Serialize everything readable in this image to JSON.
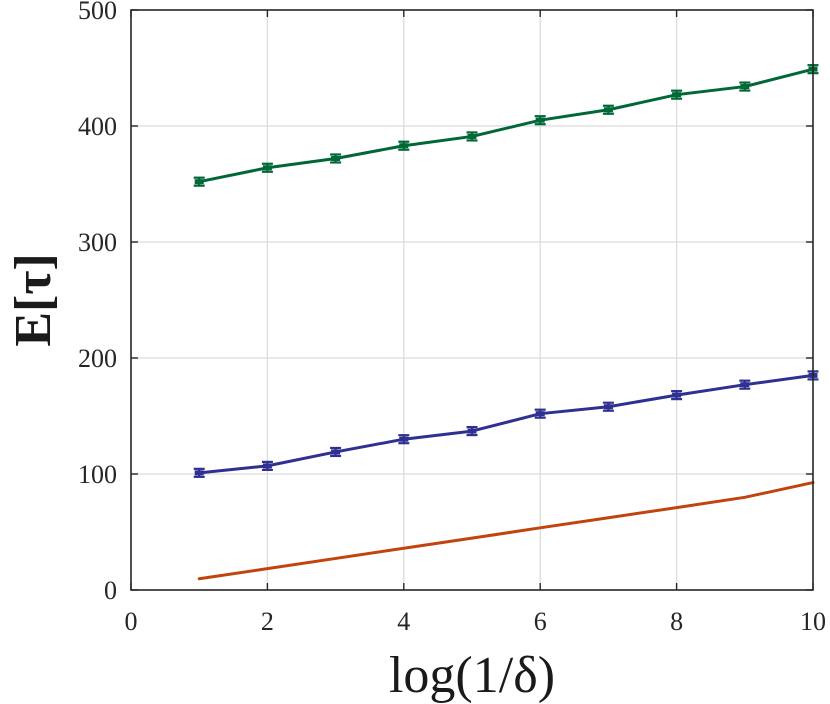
{
  "chart_data": {
    "type": "line",
    "title": "",
    "xlabel": "log(1/δ)",
    "ylabel": "E[τ]",
    "xlim": [
      0,
      10
    ],
    "ylim": [
      0,
      500
    ],
    "xticks": [
      0,
      2,
      4,
      6,
      8,
      10
    ],
    "yticks": [
      0,
      100,
      200,
      300,
      400,
      500
    ],
    "xtick_labels": [
      "0",
      "2",
      "4",
      "6",
      "8",
      "10"
    ],
    "ytick_labels": [
      "0",
      "100",
      "200",
      "300",
      "400",
      "500"
    ],
    "grid": true,
    "x": [
      1,
      2,
      3,
      4,
      5,
      6,
      7,
      8,
      9,
      10
    ],
    "series": [
      {
        "name": "green",
        "color": "#006837",
        "error_bars": true,
        "values": [
          352,
          364,
          372,
          383,
          391,
          405,
          414,
          427,
          434,
          449
        ]
      },
      {
        "name": "blue",
        "color": "#2e3192",
        "error_bars": true,
        "values": [
          101,
          107,
          119,
          130,
          137,
          152,
          158,
          168,
          177,
          185
        ]
      },
      {
        "name": "orange",
        "color": "#c1440e",
        "error_bars": false,
        "values": [
          9.7,
          18.4,
          27.2,
          36.0,
          44.7,
          53.6,
          62.3,
          71.0,
          79.9,
          92.6
        ]
      }
    ]
  }
}
